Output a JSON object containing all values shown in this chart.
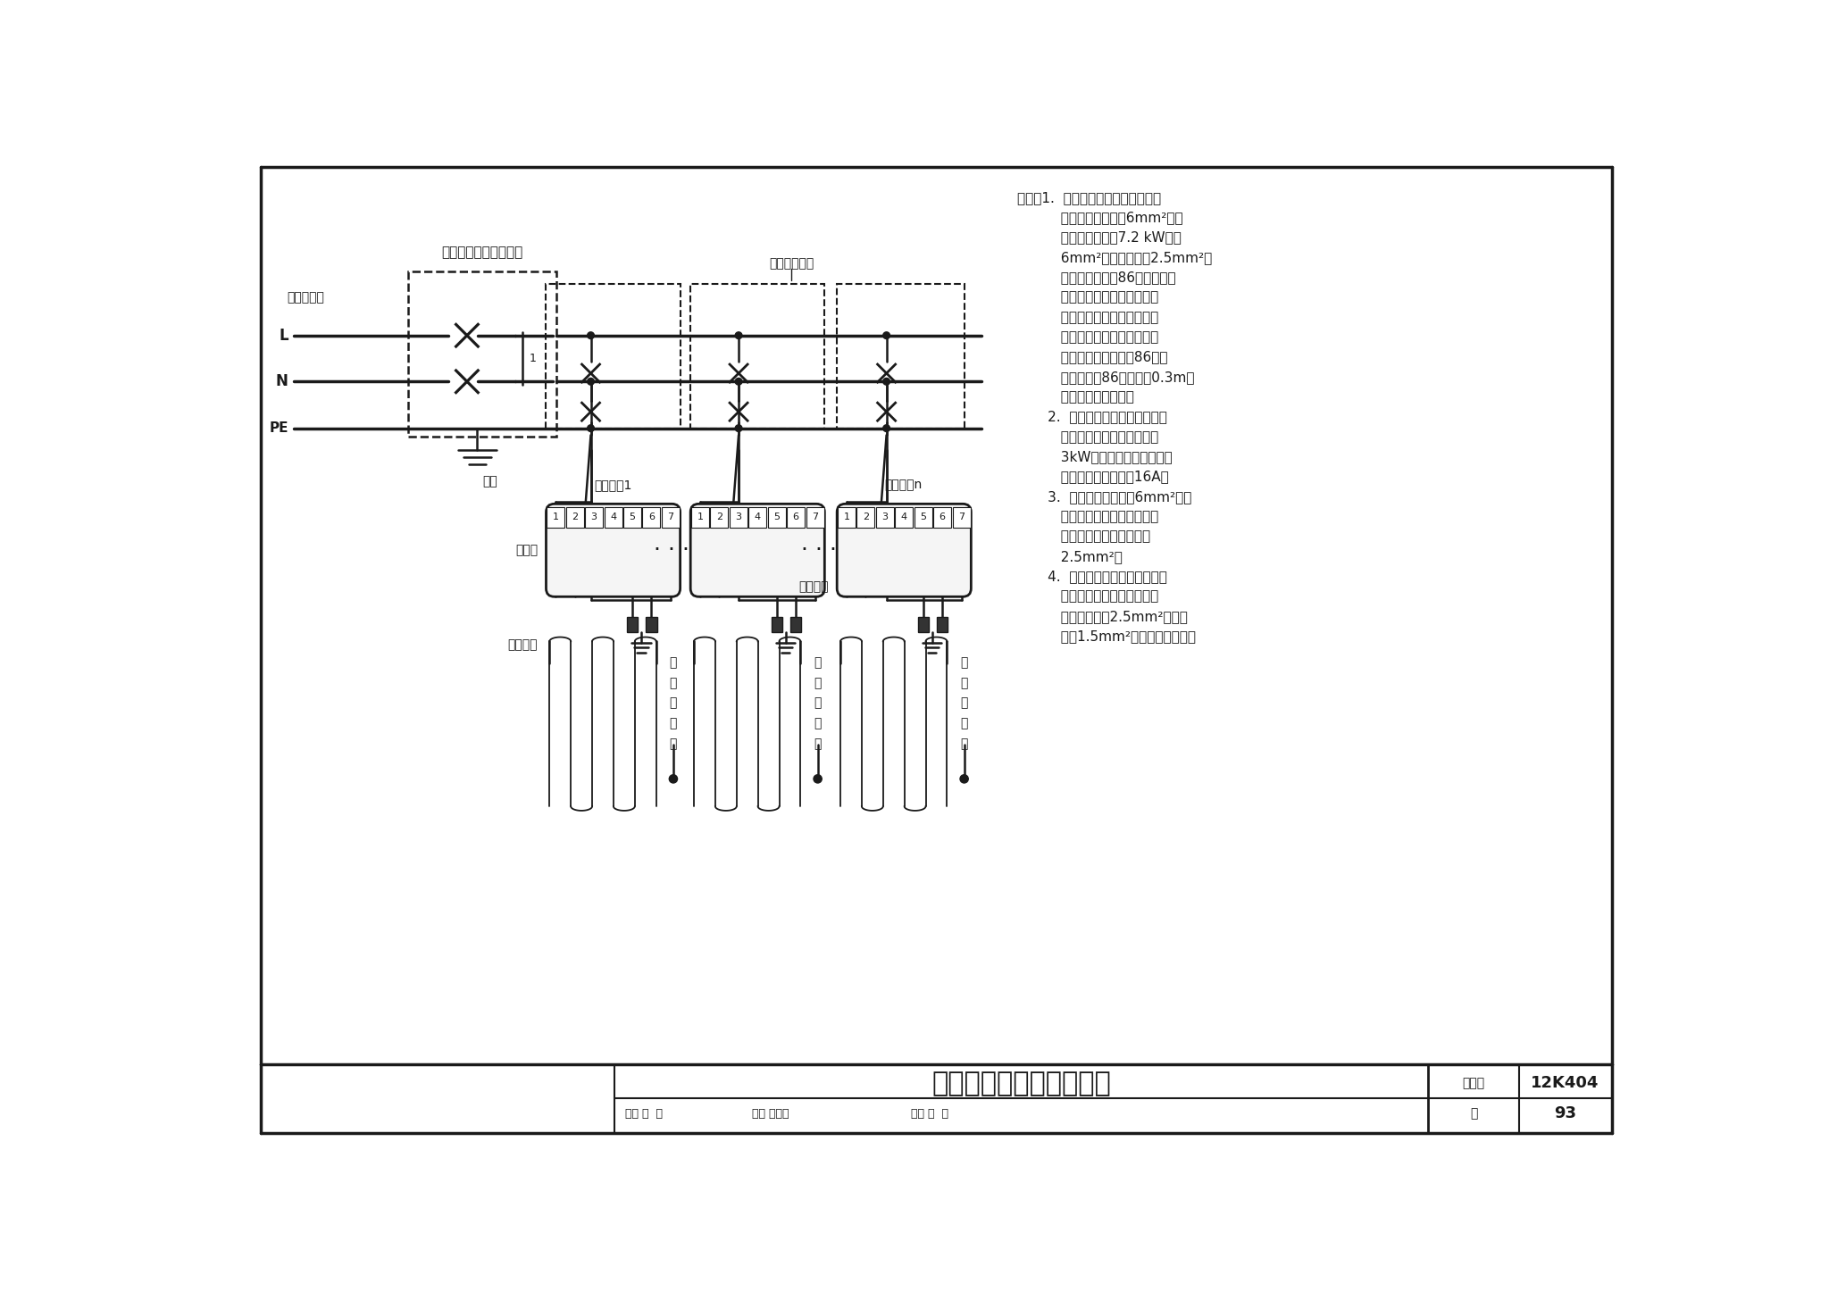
{
  "title": "加热电缆温控器接线图二",
  "figure_number": "12K404",
  "page": "93",
  "bg_color": "#ffffff",
  "line_color": "#1a1a1a",
  "notes_lines": [
    "说明：1.  该方案从剩余电流漏电保护",
    "          器出来的电源线为6mm²，最",
    "          大电地暖负荷约7.2 kW。从",
    "          6mm²主电源线分出2.5mm²支",
    "          电源线，采用在86盒内分接。",
    "          分支电源线接在主线上，用",
    "          镀锡焊接牢固，并用绣缘胶",
    "          布做绣缘处理，接地线同法",
    "          施工。图纸虚线框兢86盒接",
    "          线示意处，86盒离地面0.3m，",
    "          或与其他线盒平齐。",
    "       2.  每个电地暖温控器只能进一",
    "          根加热电缆，功率不能超过",
    "          3kW。温控器内微型交流接",
    "          触器遭断电流不小于16A。",
    "       3.  温控器的电源线从6mm²的主",
    "          电源上取，进温控器的电源",
    "          线用多芯锐线，截面积为",
    "          2.5mm²。",
    "       4.  接地线随电源线进温控器，",
    "          并与加热电缆的接地端相连",
    "          接。主接地线2.5mm²，分接",
    "          地线1.5mm²，均为多芯锐线。"
  ],
  "lw_thick": 2.5,
  "lw_med": 1.8,
  "lw_thin": 1.3,
  "lw_border": 2.5
}
